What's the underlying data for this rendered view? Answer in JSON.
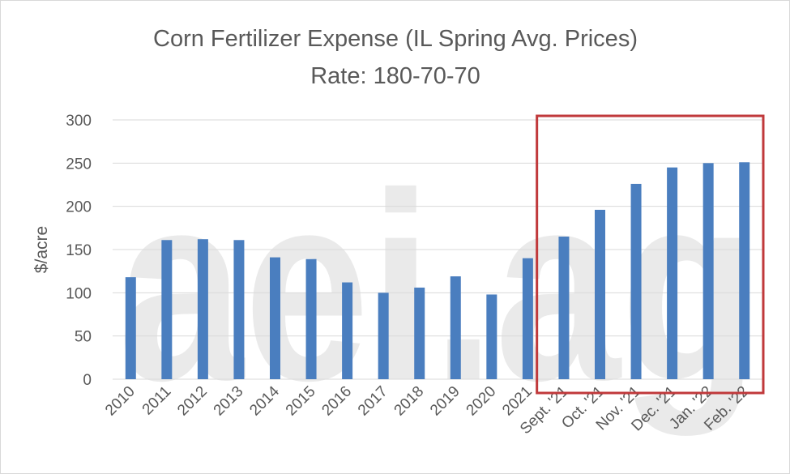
{
  "chart_data": {
    "type": "bar",
    "title": "Corn Fertilizer Expense (IL Spring Avg. Prices)",
    "subtitle": "Rate: 180-70-70",
    "xlabel": "",
    "ylabel": "$/acre",
    "ylim": [
      0,
      300
    ],
    "yticks": [
      "0",
      "50",
      "100",
      "150",
      "200",
      "250",
      "300"
    ],
    "grid": true,
    "watermark": "aei.ag",
    "highlight": {
      "from_category": "Sept. '21",
      "to_category": "Feb. '22",
      "color": "#c0393b"
    },
    "bar_color": "#4a7ebf",
    "categories": [
      "2010",
      "2011",
      "2012",
      "2013",
      "2014",
      "2015",
      "2016",
      "2017",
      "2018",
      "2019",
      "2020",
      "2021",
      "Sept. '21",
      "Oct. '21",
      "Nov. '21",
      "Dec. '21",
      "Jan. '22",
      "Feb. '22"
    ],
    "values": [
      118,
      161,
      162,
      161,
      141,
      139,
      112,
      100,
      106,
      119,
      98,
      140,
      165,
      196,
      226,
      245,
      250,
      251
    ]
  }
}
